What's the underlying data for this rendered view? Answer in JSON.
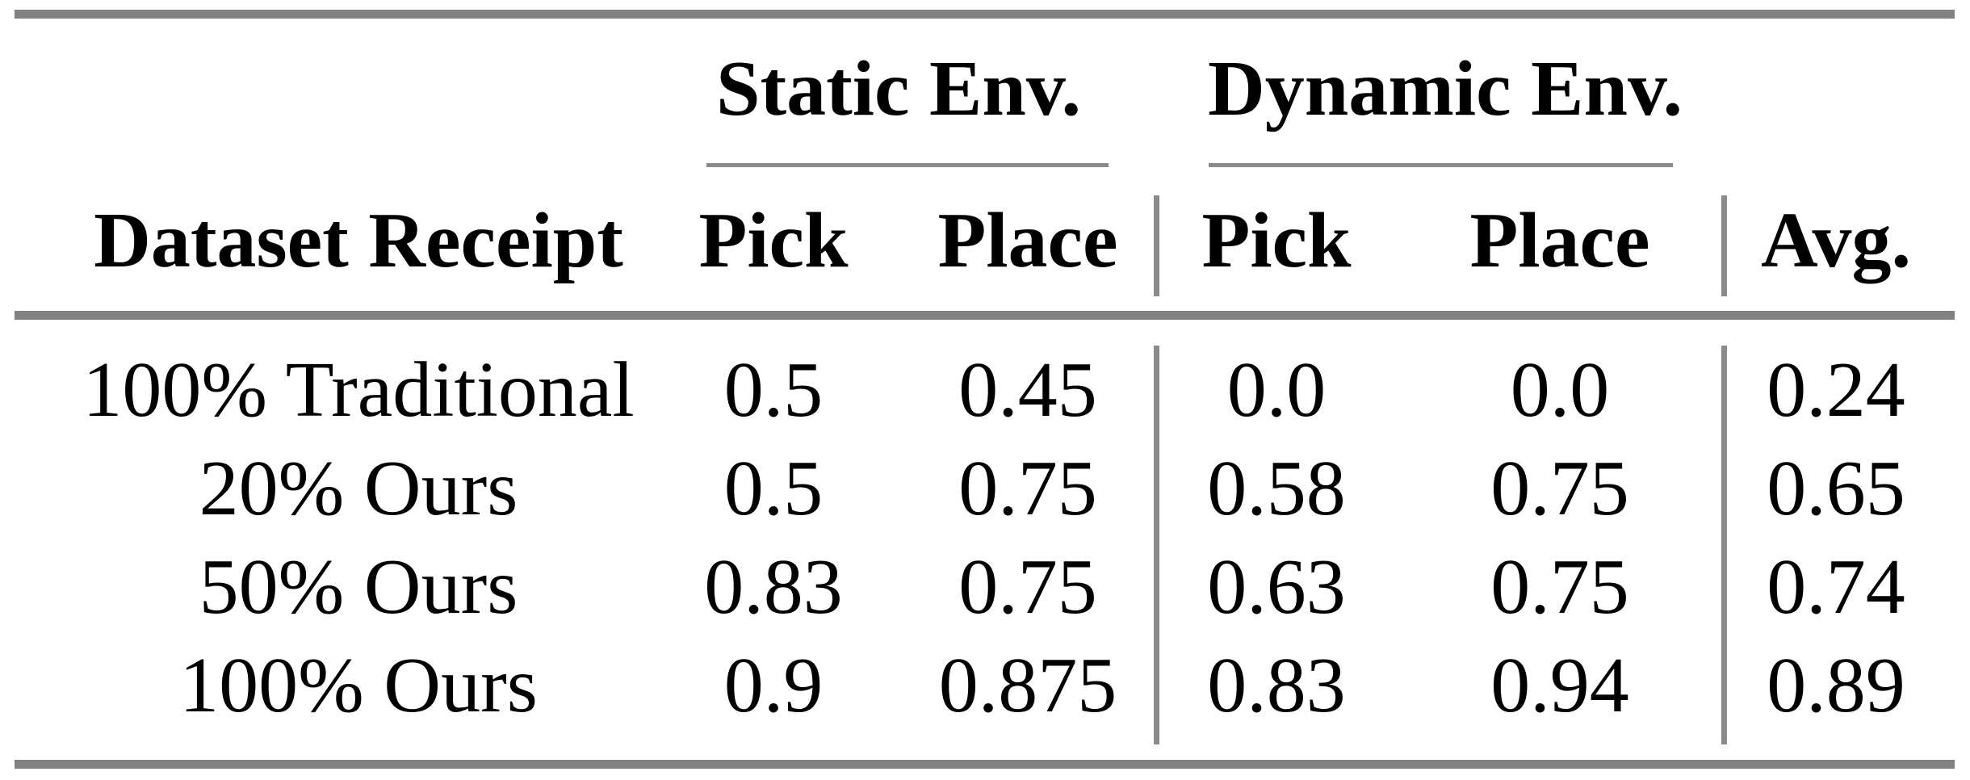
{
  "table": {
    "column_groups": [
      {
        "label": "Static Env."
      },
      {
        "label": "Dynamic Env."
      }
    ],
    "header": {
      "row_label": "Dataset Receipt",
      "static_pick": "Pick",
      "static_place": "Place",
      "dynamic_pick": "Pick",
      "dynamic_place": "Place",
      "avg": "Avg."
    },
    "rows": [
      {
        "label": "100% Traditional",
        "values": [
          "0.5",
          "0.45",
          "0.0",
          "0.0",
          "0.24"
        ]
      },
      {
        "label": "20% Ours",
        "values": [
          "0.5",
          "0.75",
          "0.58",
          "0.75",
          "0.65"
        ]
      },
      {
        "label": "50% Ours",
        "values": [
          "0.83",
          "0.75",
          "0.63",
          "0.75",
          "0.74"
        ]
      },
      {
        "label": "100% Ours",
        "values": [
          "0.9",
          "0.875",
          "0.83",
          "0.94",
          "0.89"
        ]
      }
    ],
    "colors": {
      "rule_gray": "#818181",
      "text": "#000000",
      "background": "#ffffff"
    }
  },
  "chart_data": {
    "type": "table",
    "columns": [
      "Dataset Receipt",
      "Static Env. Pick",
      "Static Env. Place",
      "Dynamic Env. Pick",
      "Dynamic Env. Place",
      "Avg."
    ],
    "rows": [
      [
        "100% Traditional",
        0.5,
        0.45,
        0.0,
        0.0,
        0.24
      ],
      [
        "20% Ours",
        0.5,
        0.75,
        0.58,
        0.75,
        0.65
      ],
      [
        "50% Ours",
        0.83,
        0.75,
        0.63,
        0.75,
        0.74
      ],
      [
        "100% Ours",
        0.9,
        0.875,
        0.83,
        0.94,
        0.89
      ]
    ]
  }
}
